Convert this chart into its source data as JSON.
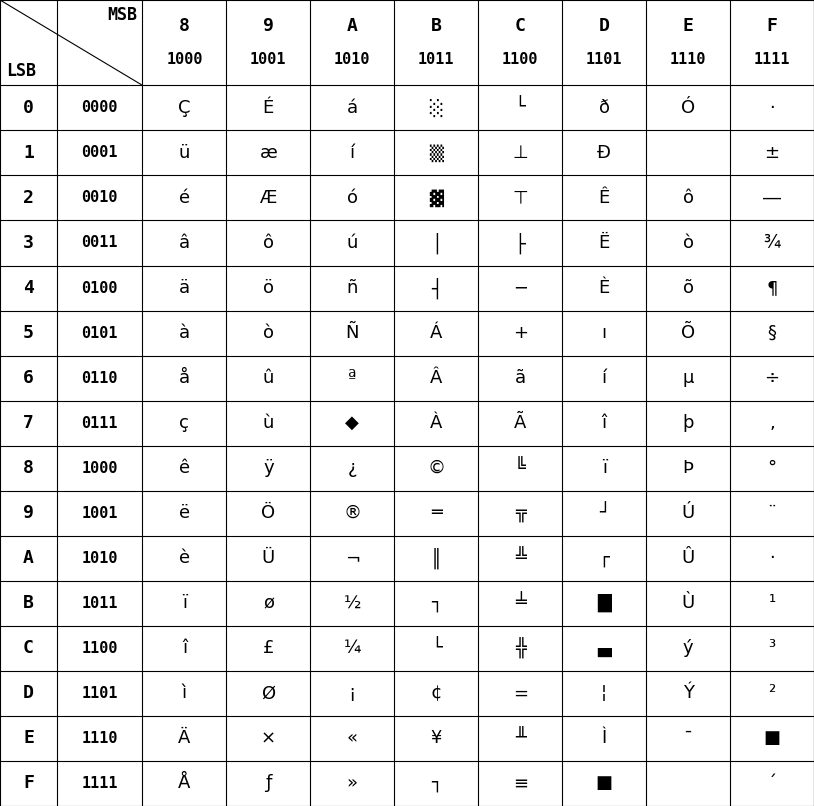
{
  "col_msb": [
    "8",
    "9",
    "A",
    "B",
    "C",
    "D",
    "E",
    "F"
  ],
  "col_bin": [
    "1000",
    "1001",
    "1010",
    "1011",
    "1100",
    "1101",
    "1110",
    "1111"
  ],
  "row_lsb_hex": [
    "0",
    "1",
    "2",
    "3",
    "4",
    "5",
    "6",
    "7",
    "8",
    "9",
    "A",
    "B",
    "C",
    "D",
    "E",
    "F"
  ],
  "row_lsb_bin": [
    "0000",
    "0001",
    "0010",
    "0011",
    "0100",
    "0101",
    "0110",
    "0111",
    "1000",
    "1001",
    "1010",
    "1011",
    "1100",
    "1101",
    "1110",
    "1111"
  ],
  "cells": [
    [
      "Ç",
      "É",
      "á",
      "░",
      "└",
      "ð",
      "Ó",
      "·"
    ],
    [
      "ü",
      "æ",
      "í",
      "▒",
      "⊥",
      "Ð",
      " ",
      "±"
    ],
    [
      "é",
      "Æ",
      "ó",
      "▓",
      "⊤",
      "Ê",
      "ô",
      "―"
    ],
    [
      "â",
      "ô",
      "ú",
      "│",
      "├",
      "Ë",
      "ò",
      "¾"
    ],
    [
      "ä",
      "ö",
      "ñ",
      "┤",
      "─",
      "È",
      "õ",
      "¶"
    ],
    [
      "à",
      "ò",
      "Ñ",
      "Á",
      "+",
      "ı",
      "Õ",
      "§"
    ],
    [
      "å",
      "û",
      "ª",
      "Â",
      "ã",
      "í",
      "µ",
      "÷"
    ],
    [
      "ç",
      "ù",
      "◆",
      "À",
      "Ã",
      "î",
      "þ",
      ","
    ],
    [
      "ê",
      "ÿ",
      "¿",
      "©",
      "╚",
      "ï",
      "Þ",
      "°"
    ],
    [
      "ë",
      "Ö",
      "®",
      "═",
      "╦",
      "┘",
      "Ú",
      "¨"
    ],
    [
      "è",
      "Ü",
      "¬",
      "║",
      "╩",
      "┌",
      "Û",
      "·"
    ],
    [
      "ï",
      "ø",
      "½",
      "┐",
      "╧",
      "█",
      "Ù",
      "¹"
    ],
    [
      "î",
      "£",
      "¼",
      "└",
      "╬",
      "▄",
      "ý",
      "³"
    ],
    [
      "ì",
      "Ø",
      "¡",
      "¢",
      "=",
      "¦",
      "Ý",
      "²"
    ],
    [
      "Ä",
      "×",
      "«",
      "¥",
      "╨",
      "Ì",
      "¯",
      "■"
    ],
    [
      "Å",
      "ƒ",
      "»",
      "┐",
      "≡",
      "■",
      " ",
      "´"
    ]
  ],
  "background_color": "#ffffff",
  "grid_color": "#000000",
  "text_color": "#000000",
  "font_size": 13,
  "mono_font_size": 12
}
